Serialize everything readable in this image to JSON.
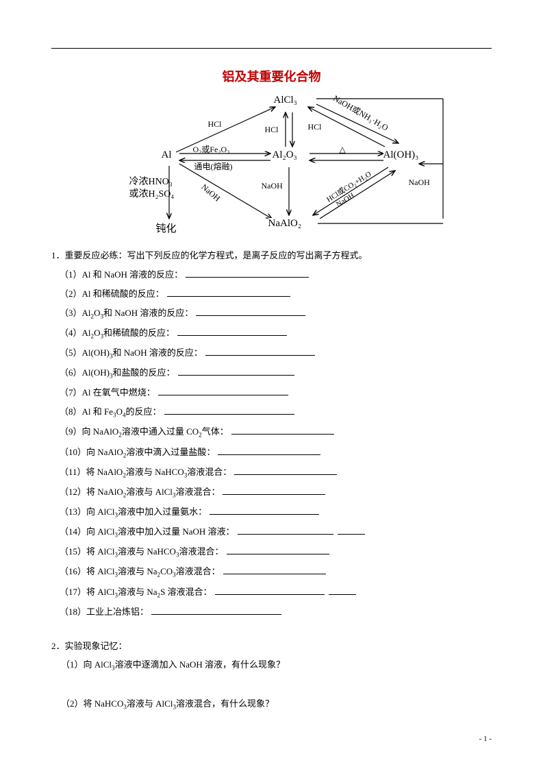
{
  "title_text": "铝及其重要化合物",
  "title_color": "#c00000",
  "title_fontsize": 18,
  "diagram": {
    "nodes": {
      "alcl3": "AlCl₃",
      "al": "Al",
      "al2o3": "Al₂O₃",
      "aloh3": "Al(OH)₃",
      "naalo2": "NaAlO₂",
      "passivation": "钝化"
    },
    "labels": {
      "hcl_left": "HCl",
      "hcl_mid": "HCl",
      "hcl_right": "HCl",
      "o2fe2o3": "O₂或Fe₂O₃",
      "electrolysis": "通电(熔融)",
      "naoh_right": "NaOH",
      "naoh_diag": "NaOH",
      "naoh_mid": "NaOH",
      "naoh_bottom": "NaOH",
      "cold_hno3": "冷浓HNO₃",
      "cold_h2so4": "或浓H₂SO₄",
      "delta": "△",
      "naoh_or_nh3": "NaOH或NH₃·H₂O",
      "hcl_co2": "HCl或CO₂+H₂O"
    }
  },
  "q1_prompt": "1．重要反应必练：写出下列反应的化学方程式，是离子反应的写出离子方程式。",
  "q1_items": [
    "（1）Al 和 NaOH 溶液的反应：",
    "（2）Al 和稀硫酸的反应：",
    "（3）Al₂O₃和 NaOH 溶液的反应：",
    "（4）Al₂O₃和稀硫酸的反应：",
    "（5）Al(OH)₃和 NaOH 溶液的反应：",
    "（6）Al(OH)₃和盐酸的反应：",
    "（7）Al 在氧气中燃烧：",
    "（8）Al 和 Fe₃O₄的反应：",
    "（9）向 NaAlO₂溶液中通入过量 CO₂气体：",
    "（10）向 NaAlO₂溶液中滴入过量盐酸：",
    "（11）将 NaAlO₂溶液与 NaHCO₃溶液混合：",
    "（12）将 NaAlO₂溶液与 AlCl₃溶液混合：",
    "（13）向 AlCl₃溶液中加入过量氨水：",
    "（14）向 AlCl₃溶液中加入过量 NaOH 溶液：",
    "（15）将 AlCl₃溶液与 NaHCO₃溶液混合：",
    "（16）将 AlCl₃溶液与 Na₂CO₃溶液混合：",
    "（17）将 AlCl₃溶液与 Na₂S 溶液混合：",
    "（18）工业上冶炼铝："
  ],
  "blank_widths": [
    180,
    180,
    160,
    160,
    160,
    170,
    190,
    190,
    150,
    150,
    150,
    150,
    160,
    140,
    150,
    150,
    160,
    190
  ],
  "extra_blank_indices": [
    13,
    16
  ],
  "q2_prompt": "2．实验现象记忆：",
  "q2_items": [
    "（1）向 AlCl₃溶液中逐滴加入 NaOH 溶液，有什么现象？",
    "（2）将 NaHCO₃溶液与 AlCl₃溶液混合，有什么现象？"
  ],
  "page_number": "- 1 -"
}
